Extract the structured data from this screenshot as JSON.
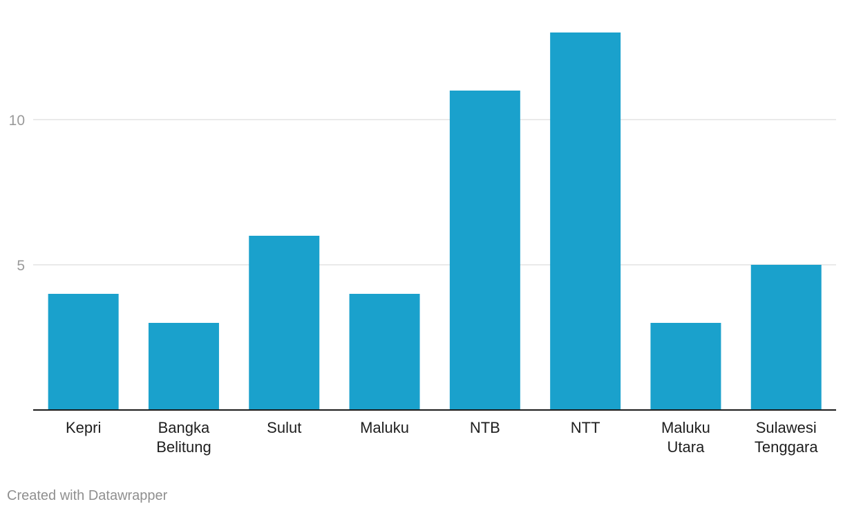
{
  "chart_data": {
    "type": "bar",
    "categories": [
      "Kepri",
      "Bangka Belitung",
      "Sulut",
      "Maluku",
      "NTB",
      "NTT",
      "Maluku Utara",
      "Sulawesi Tenggara"
    ],
    "category_lines": [
      [
        "Kepri"
      ],
      [
        "Bangka",
        "Belitung"
      ],
      [
        "Sulut"
      ],
      [
        "Maluku"
      ],
      [
        "NTB"
      ],
      [
        "NTT"
      ],
      [
        "Maluku",
        "Utara"
      ],
      [
        "Sulawesi",
        "Tenggara"
      ]
    ],
    "values": [
      4,
      3,
      6,
      4,
      11,
      13,
      3,
      5
    ],
    "yticks": [
      5,
      10
    ],
    "ylim": [
      0,
      14
    ],
    "grid": true,
    "bar_color": "#1aa1cc",
    "grid_color": "#e3e3e3",
    "axis_color": "#1a1a1a"
  },
  "footer": {
    "credit": "Created with Datawrapper"
  }
}
